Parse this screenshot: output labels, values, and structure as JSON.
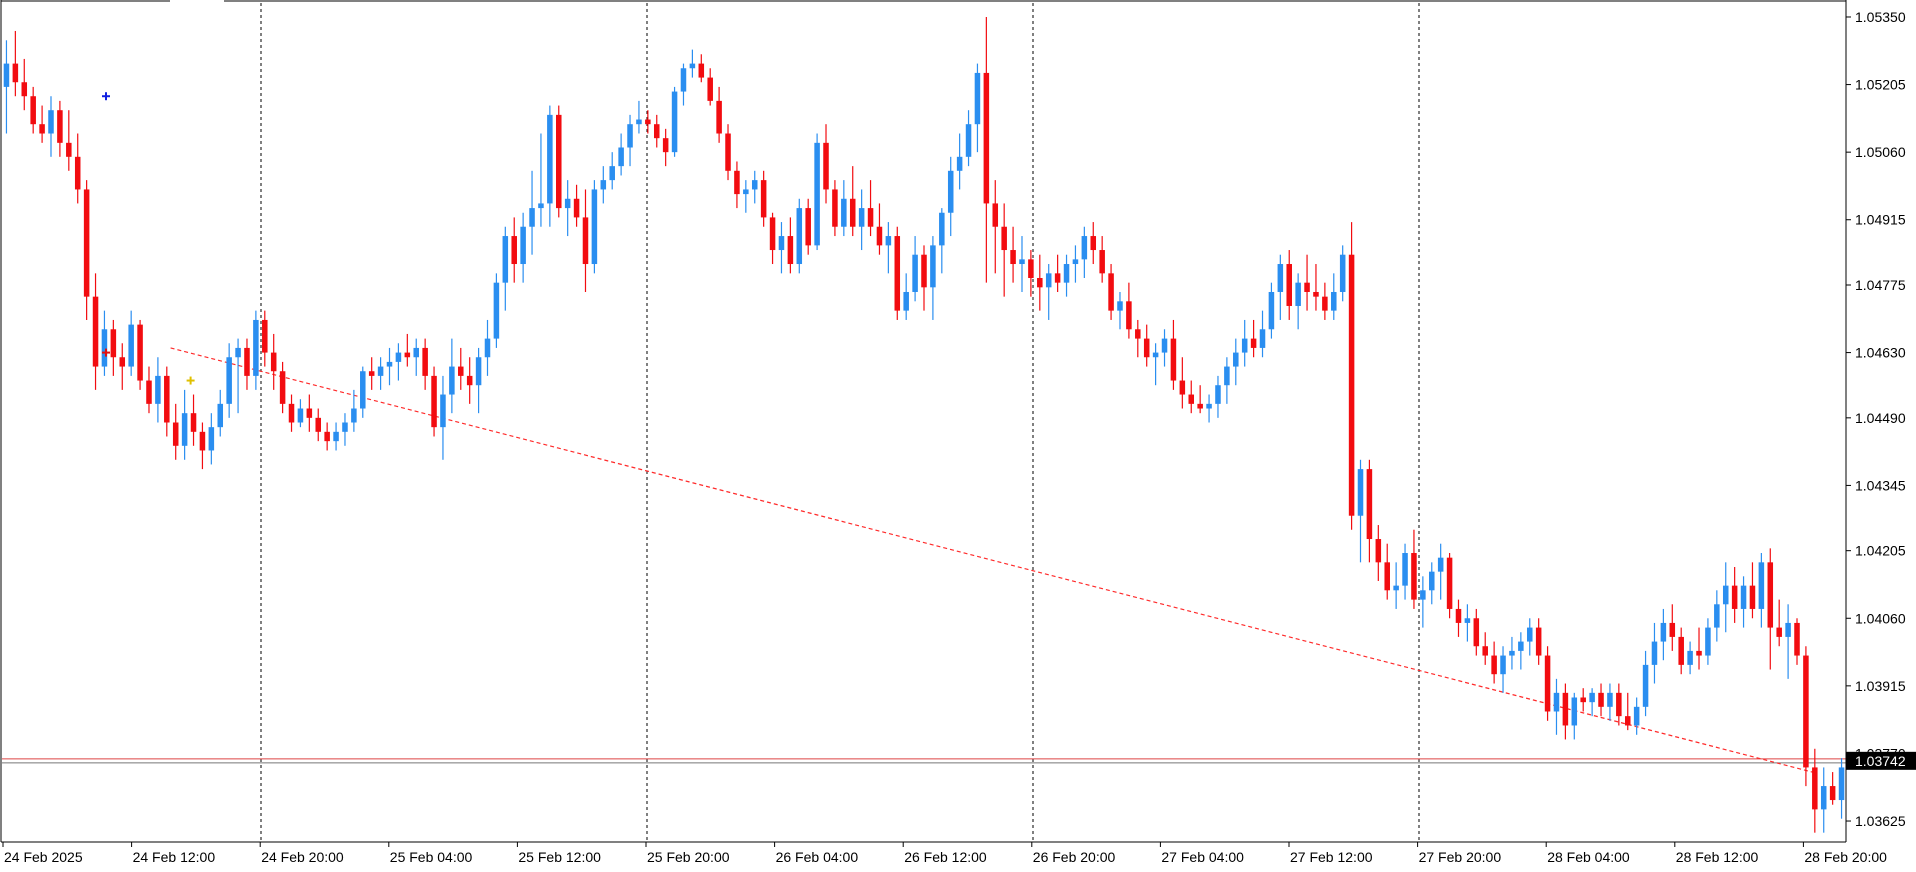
{
  "chart_data": {
    "type": "candlestick",
    "symbol": "",
    "colors": {
      "bull": "#2a8ef0",
      "bear": "#f20c10",
      "price_line": "#d44",
      "trendline": "#ff2a2a",
      "last_price_bg": "#000000",
      "last_price_text": "#ffffff",
      "vgrid": "#000000"
    },
    "price_axis": {
      "ylim": [
        1.0358,
        1.0538
      ],
      "ticks": [
        "1.05350",
        "1.05205",
        "1.05060",
        "1.04915",
        "1.04775",
        "1.04630",
        "1.04490",
        "1.04345",
        "1.04205",
        "1.04060",
        "1.03915",
        "1.03770",
        "1.03625"
      ]
    },
    "last_price": "1.03742",
    "price_line_value": 1.03752,
    "time_axis": {
      "labels": [
        "24 Feb 2025",
        "24 Feb 12:00",
        "24 Feb 20:00",
        "25 Feb 04:00",
        "25 Feb 12:00",
        "25 Feb 20:00",
        "26 Feb 04:00",
        "26 Feb 12:00",
        "26 Feb 20:00",
        "27 Feb 04:00",
        "27 Feb 12:00",
        "27 Feb 20:00",
        "28 Feb 04:00",
        "28 Feb 12:00",
        "28 Feb 20:00"
      ],
      "separator_labels": [
        "24 Feb 20:00",
        "25 Feb 20:00",
        "26 Feb 20:00",
        "27 Feb 20:00"
      ]
    },
    "trendline": {
      "from": [
        "24 Feb 12:00",
        1.0464
      ],
      "to": [
        "28 Feb 20:00",
        1.0373
      ],
      "style": "dashed"
    },
    "annotations": [
      {
        "type": "marker",
        "color": "#1020e0",
        "at": [
          "24 Feb 2025",
          1.0518
        ],
        "name": "blue-marker"
      },
      {
        "type": "marker",
        "color": "#e01010",
        "at": [
          "24 Feb 2025",
          1.0463
        ],
        "name": "red-marker"
      },
      {
        "type": "marker",
        "color": "#e0c000",
        "at": [
          "24 Feb 12:00",
          1.0457
        ],
        "name": "yellow-marker"
      }
    ],
    "candles": [
      [
        1.052,
        1.053,
        1.051,
        1.0525
      ],
      [
        1.0525,
        1.0532,
        1.0518,
        1.0521
      ],
      [
        1.0521,
        1.0526,
        1.0515,
        1.0518
      ],
      [
        1.0518,
        1.052,
        1.051,
        1.0512
      ],
      [
        1.0512,
        1.0516,
        1.0508,
        1.051
      ],
      [
        1.051,
        1.0518,
        1.0505,
        1.0515
      ],
      [
        1.0515,
        1.0517,
        1.0505,
        1.0508
      ],
      [
        1.0508,
        1.0515,
        1.0502,
        1.0505
      ],
      [
        1.0505,
        1.051,
        1.0495,
        1.0498
      ],
      [
        1.0498,
        1.05,
        1.047,
        1.0475
      ],
      [
        1.0475,
        1.048,
        1.0455,
        1.046
      ],
      [
        1.046,
        1.0472,
        1.0458,
        1.0468
      ],
      [
        1.0468,
        1.047,
        1.0458,
        1.0462
      ],
      [
        1.0462,
        1.0465,
        1.0455,
        1.046
      ],
      [
        1.046,
        1.0472,
        1.0458,
        1.0469
      ],
      [
        1.0469,
        1.047,
        1.0455,
        1.0457
      ],
      [
        1.0457,
        1.046,
        1.045,
        1.0452
      ],
      [
        1.0452,
        1.0462,
        1.0448,
        1.0458
      ],
      [
        1.0458,
        1.046,
        1.0445,
        1.0448
      ],
      [
        1.0448,
        1.0452,
        1.044,
        1.0443
      ],
      [
        1.0443,
        1.0455,
        1.044,
        1.045
      ],
      [
        1.045,
        1.0454,
        1.0443,
        1.0446
      ],
      [
        1.0446,
        1.0448,
        1.0438,
        1.0442
      ],
      [
        1.0442,
        1.045,
        1.0439,
        1.0447
      ],
      [
        1.0447,
        1.0455,
        1.0445,
        1.0452
      ],
      [
        1.0452,
        1.0465,
        1.0449,
        1.0462
      ],
      [
        1.0462,
        1.0466,
        1.045,
        1.0464
      ],
      [
        1.0464,
        1.0466,
        1.0455,
        1.0458
      ],
      [
        1.0458,
        1.0472,
        1.0455,
        1.047
      ],
      [
        1.047,
        1.0472,
        1.046,
        1.0463
      ],
      [
        1.0463,
        1.0467,
        1.0455,
        1.0459
      ],
      [
        1.0459,
        1.0461,
        1.045,
        1.0452
      ],
      [
        1.0452,
        1.0454,
        1.0446,
        1.0448
      ],
      [
        1.0448,
        1.0453,
        1.0447,
        1.0451
      ],
      [
        1.0451,
        1.0454,
        1.0446,
        1.0449
      ],
      [
        1.0449,
        1.0451,
        1.0444,
        1.0446
      ],
      [
        1.0446,
        1.0448,
        1.0442,
        1.0444
      ],
      [
        1.0444,
        1.0448,
        1.0442,
        1.0446
      ],
      [
        1.0446,
        1.045,
        1.0443,
        1.0448
      ],
      [
        1.0448,
        1.0455,
        1.0446,
        1.0451
      ],
      [
        1.0451,
        1.046,
        1.0449,
        1.0459
      ],
      [
        1.0459,
        1.0462,
        1.0455,
        1.0458
      ],
      [
        1.0458,
        1.0462,
        1.0455,
        1.046
      ],
      [
        1.046,
        1.0464,
        1.0456,
        1.0461
      ],
      [
        1.0461,
        1.0465,
        1.0457,
        1.0463
      ],
      [
        1.0463,
        1.0467,
        1.046,
        1.0462
      ],
      [
        1.0462,
        1.0466,
        1.0458,
        1.0464
      ],
      [
        1.0464,
        1.0466,
        1.0455,
        1.0458
      ],
      [
        1.0458,
        1.046,
        1.0445,
        1.0447
      ],
      [
        1.0447,
        1.0458,
        1.044,
        1.0454
      ],
      [
        1.0454,
        1.0466,
        1.045,
        1.046
      ],
      [
        1.046,
        1.0464,
        1.0455,
        1.0458
      ],
      [
        1.0458,
        1.0462,
        1.0452,
        1.0456
      ],
      [
        1.0456,
        1.0464,
        1.045,
        1.0462
      ],
      [
        1.0462,
        1.047,
        1.0458,
        1.0466
      ],
      [
        1.0466,
        1.048,
        1.0464,
        1.0478
      ],
      [
        1.0478,
        1.049,
        1.0472,
        1.0488
      ],
      [
        1.0488,
        1.0492,
        1.0478,
        1.0482
      ],
      [
        1.0482,
        1.0493,
        1.0478,
        1.049
      ],
      [
        1.049,
        1.0502,
        1.0484,
        1.0494
      ],
      [
        1.0494,
        1.051,
        1.049,
        1.0495
      ],
      [
        1.0495,
        1.0516,
        1.049,
        1.0514
      ],
      [
        1.0514,
        1.0516,
        1.0492,
        1.0494
      ],
      [
        1.0494,
        1.05,
        1.0488,
        1.0496
      ],
      [
        1.0496,
        1.0499,
        1.049,
        1.0492
      ],
      [
        1.0492,
        1.0498,
        1.0476,
        1.0482
      ],
      [
        1.0482,
        1.05,
        1.048,
        1.0498
      ],
      [
        1.0498,
        1.0503,
        1.0495,
        1.05
      ],
      [
        1.05,
        1.0506,
        1.0498,
        1.0503
      ],
      [
        1.0503,
        1.051,
        1.0501,
        1.0507
      ],
      [
        1.0507,
        1.0514,
        1.0503,
        1.0512
      ],
      [
        1.0512,
        1.0517,
        1.051,
        1.0513
      ],
      [
        1.0513,
        1.0515,
        1.051,
        1.0512
      ],
      [
        1.0512,
        1.0514,
        1.0507,
        1.0509
      ],
      [
        1.0509,
        1.0511,
        1.0503,
        1.0506
      ],
      [
        1.0506,
        1.052,
        1.0505,
        1.0519
      ],
      [
        1.0519,
        1.0525,
        1.0516,
        1.0524
      ],
      [
        1.0524,
        1.0528,
        1.0522,
        1.0525
      ],
      [
        1.0525,
        1.0527,
        1.0521,
        1.0522
      ],
      [
        1.0522,
        1.0524,
        1.0516,
        1.0517
      ],
      [
        1.0517,
        1.052,
        1.0508,
        1.051
      ],
      [
        1.051,
        1.0512,
        1.05,
        1.0502
      ],
      [
        1.0502,
        1.0504,
        1.0494,
        1.0497
      ],
      [
        1.0497,
        1.05,
        1.0493,
        1.0498
      ],
      [
        1.0498,
        1.0502,
        1.0495,
        1.05
      ],
      [
        1.05,
        1.0502,
        1.049,
        1.0492
      ],
      [
        1.0492,
        1.0493,
        1.0482,
        1.0485
      ],
      [
        1.0485,
        1.0491,
        1.048,
        1.0488
      ],
      [
        1.0488,
        1.0492,
        1.048,
        1.0482
      ],
      [
        1.0482,
        1.0496,
        1.048,
        1.0494
      ],
      [
        1.0494,
        1.0496,
        1.0484,
        1.0486
      ],
      [
        1.0486,
        1.051,
        1.0485,
        1.0508
      ],
      [
        1.0508,
        1.0512,
        1.0495,
        1.0498
      ],
      [
        1.0498,
        1.05,
        1.0488,
        1.049
      ],
      [
        1.049,
        1.05,
        1.0488,
        1.0496
      ],
      [
        1.0496,
        1.0503,
        1.0488,
        1.049
      ],
      [
        1.049,
        1.0498,
        1.0485,
        1.0494
      ],
      [
        1.0494,
        1.05,
        1.0488,
        1.049
      ],
      [
        1.049,
        1.0495,
        1.0484,
        1.0486
      ],
      [
        1.0486,
        1.0491,
        1.048,
        1.0488
      ],
      [
        1.0488,
        1.049,
        1.047,
        1.0472
      ],
      [
        1.0472,
        1.048,
        1.047,
        1.0476
      ],
      [
        1.0476,
        1.0488,
        1.0474,
        1.0484
      ],
      [
        1.0484,
        1.0486,
        1.0472,
        1.0477
      ],
      [
        1.0477,
        1.0488,
        1.047,
        1.0486
      ],
      [
        1.0486,
        1.0494,
        1.048,
        1.0493
      ],
      [
        1.0493,
        1.0505,
        1.0488,
        1.0502
      ],
      [
        1.0502,
        1.051,
        1.0498,
        1.0505
      ],
      [
        1.0505,
        1.0515,
        1.0503,
        1.0512
      ],
      [
        1.0512,
        1.0525,
        1.0506,
        1.0523
      ],
      [
        1.0523,
        1.0535,
        1.0478,
        1.0495
      ],
      [
        1.0495,
        1.05,
        1.048,
        1.049
      ],
      [
        1.049,
        1.0495,
        1.0475,
        1.0485
      ],
      [
        1.0485,
        1.049,
        1.0478,
        1.0482
      ],
      [
        1.0482,
        1.0488,
        1.0476,
        1.0483
      ],
      [
        1.0483,
        1.0485,
        1.0475,
        1.0479
      ],
      [
        1.0479,
        1.0484,
        1.0472,
        1.0477
      ],
      [
        1.0477,
        1.0482,
        1.047,
        1.048
      ],
      [
        1.048,
        1.0484,
        1.0476,
        1.0478
      ],
      [
        1.0478,
        1.0484,
        1.0475,
        1.0482
      ],
      [
        1.0482,
        1.0486,
        1.0478,
        1.0483
      ],
      [
        1.0483,
        1.049,
        1.0479,
        1.0488
      ],
      [
        1.0488,
        1.0491,
        1.0482,
        1.0485
      ],
      [
        1.0485,
        1.0488,
        1.0478,
        1.048
      ],
      [
        1.048,
        1.0482,
        1.047,
        1.0472
      ],
      [
        1.0472,
        1.0476,
        1.0468,
        1.0474
      ],
      [
        1.0474,
        1.0478,
        1.0466,
        1.0468
      ],
      [
        1.0468,
        1.047,
        1.0462,
        1.0466
      ],
      [
        1.0466,
        1.0469,
        1.046,
        1.0462
      ],
      [
        1.0462,
        1.0465,
        1.0456,
        1.0463
      ],
      [
        1.0463,
        1.0468,
        1.046,
        1.0466
      ],
      [
        1.0466,
        1.047,
        1.0455,
        1.0457
      ],
      [
        1.0457,
        1.0462,
        1.0451,
        1.0454
      ],
      [
        1.0454,
        1.0457,
        1.045,
        1.0452
      ],
      [
        1.0452,
        1.0456,
        1.045,
        1.0451
      ],
      [
        1.0451,
        1.0454,
        1.0448,
        1.0452
      ],
      [
        1.0452,
        1.0458,
        1.0449,
        1.0456
      ],
      [
        1.0456,
        1.0462,
        1.0452,
        1.046
      ],
      [
        1.046,
        1.0466,
        1.0456,
        1.0463
      ],
      [
        1.0463,
        1.047,
        1.046,
        1.0466
      ],
      [
        1.0466,
        1.047,
        1.0462,
        1.0464
      ],
      [
        1.0464,
        1.0472,
        1.0462,
        1.0468
      ],
      [
        1.0468,
        1.0478,
        1.0466,
        1.0476
      ],
      [
        1.0476,
        1.0484,
        1.047,
        1.0482
      ],
      [
        1.0482,
        1.0485,
        1.047,
        1.0473
      ],
      [
        1.0473,
        1.048,
        1.0468,
        1.0478
      ],
      [
        1.0478,
        1.0484,
        1.0472,
        1.0476
      ],
      [
        1.0476,
        1.0482,
        1.0472,
        1.0475
      ],
      [
        1.0475,
        1.0478,
        1.047,
        1.0472
      ],
      [
        1.0472,
        1.048,
        1.047,
        1.0476
      ],
      [
        1.0476,
        1.0486,
        1.0474,
        1.0484
      ],
      [
        1.0484,
        1.0491,
        1.0425,
        1.0428
      ],
      [
        1.0428,
        1.044,
        1.0418,
        1.0438
      ],
      [
        1.0438,
        1.044,
        1.0418,
        1.0423
      ],
      [
        1.0423,
        1.0426,
        1.0414,
        1.0418
      ],
      [
        1.0418,
        1.0422,
        1.041,
        1.0412
      ],
      [
        1.0412,
        1.0418,
        1.0408,
        1.0413
      ],
      [
        1.0413,
        1.0422,
        1.041,
        1.042
      ],
      [
        1.042,
        1.0425,
        1.0408,
        1.041
      ],
      [
        1.041,
        1.0415,
        1.0404,
        1.0412
      ],
      [
        1.0412,
        1.0418,
        1.0409,
        1.0416
      ],
      [
        1.0416,
        1.0422,
        1.041,
        1.0419
      ],
      [
        1.0419,
        1.042,
        1.0406,
        1.0408
      ],
      [
        1.0408,
        1.041,
        1.0402,
        1.0405
      ],
      [
        1.0405,
        1.0409,
        1.0401,
        1.0406
      ],
      [
        1.0406,
        1.0408,
        1.0398,
        1.04
      ],
      [
        1.04,
        1.0403,
        1.0396,
        1.0398
      ],
      [
        1.0398,
        1.0401,
        1.0392,
        1.0394
      ],
      [
        1.0394,
        1.04,
        1.039,
        1.0398
      ],
      [
        1.0398,
        1.0402,
        1.0395,
        1.0399
      ],
      [
        1.0399,
        1.0403,
        1.0395,
        1.0401
      ],
      [
        1.0401,
        1.0406,
        1.0398,
        1.0404
      ],
      [
        1.0404,
        1.0406,
        1.0396,
        1.0398
      ],
      [
        1.0398,
        1.04,
        1.0384,
        1.0386
      ],
      [
        1.0386,
        1.0393,
        1.0381,
        1.039
      ],
      [
        1.039,
        1.0392,
        1.038,
        1.0383
      ],
      [
        1.0383,
        1.039,
        1.038,
        1.0389
      ],
      [
        1.0389,
        1.0391,
        1.0386,
        1.0388
      ],
      [
        1.0388,
        1.0391,
        1.0385,
        1.039
      ],
      [
        1.039,
        1.0392,
        1.0385,
        1.0387
      ],
      [
        1.0387,
        1.0392,
        1.0384,
        1.039
      ],
      [
        1.039,
        1.0392,
        1.0383,
        1.0385
      ],
      [
        1.0385,
        1.039,
        1.0382,
        1.0383
      ],
      [
        1.0383,
        1.0389,
        1.0381,
        1.0387
      ],
      [
        1.0387,
        1.0399,
        1.0385,
        1.0396
      ],
      [
        1.0396,
        1.0405,
        1.0392,
        1.0401
      ],
      [
        1.0401,
        1.0408,
        1.0397,
        1.0405
      ],
      [
        1.0405,
        1.0409,
        1.0399,
        1.0402
      ],
      [
        1.0402,
        1.0404,
        1.0394,
        1.0396
      ],
      [
        1.0396,
        1.0401,
        1.0394,
        1.0399
      ],
      [
        1.0399,
        1.0404,
        1.0395,
        1.0398
      ],
      [
        1.0398,
        1.0406,
        1.0396,
        1.0404
      ],
      [
        1.0404,
        1.0412,
        1.0401,
        1.0409
      ],
      [
        1.0409,
        1.0418,
        1.0403,
        1.0413
      ],
      [
        1.0413,
        1.0417,
        1.0405,
        1.0408
      ],
      [
        1.0408,
        1.0415,
        1.0404,
        1.0413
      ],
      [
        1.0413,
        1.0418,
        1.0406,
        1.0408
      ],
      [
        1.0408,
        1.042,
        1.0404,
        1.0418
      ],
      [
        1.0418,
        1.0421,
        1.0395,
        1.0404
      ],
      [
        1.0404,
        1.041,
        1.04,
        1.0402
      ],
      [
        1.0402,
        1.0409,
        1.0393,
        1.0405
      ],
      [
        1.0405,
        1.0406,
        1.0396,
        1.0398
      ],
      [
        1.0398,
        1.04,
        1.037,
        1.0374
      ],
      [
        1.0374,
        1.0378,
        1.036,
        1.0365
      ],
      [
        1.0365,
        1.0374,
        1.036,
        1.037
      ],
      [
        1.037,
        1.0373,
        1.0366,
        1.0367
      ],
      [
        1.0367,
        1.0376,
        1.0363,
        1.0374
      ]
    ]
  }
}
